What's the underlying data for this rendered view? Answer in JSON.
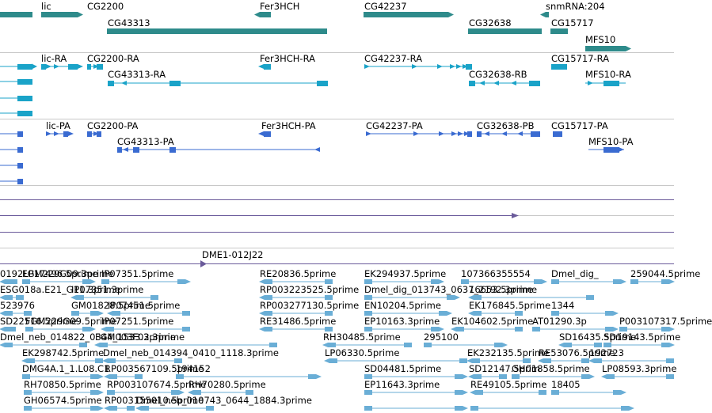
{
  "colors": {
    "gene": "#2e8b8b",
    "transcript": "#1aa3c8",
    "protein": "#3a6bd1",
    "clone": "#7b64b0",
    "est": "#6aaed6",
    "divider": "#c8c8c8",
    "track_line": "#6a5a9a"
  },
  "genes": [
    {
      "label": "lic"
    },
    {
      "label": "CG2200"
    },
    {
      "label": "CG43313"
    },
    {
      "label": "Fer3HCH"
    },
    {
      "label": "CG42237"
    },
    {
      "label": "CG32638"
    },
    {
      "label": "snmRNA:204"
    },
    {
      "label": "CG15717"
    },
    {
      "label": "MFS10"
    }
  ],
  "transcripts": [
    {
      "label": "lic-RA"
    },
    {
      "label": "CG2200-RA"
    },
    {
      "label": "CG43313-RA"
    },
    {
      "label": "Fer3HCH-RA"
    },
    {
      "label": "CG42237-RA"
    },
    {
      "label": "CG32638-RB"
    },
    {
      "label": "CG15717-RA"
    },
    {
      "label": "MFS10-RA"
    }
  ],
  "proteins": [
    {
      "label": "lic-PA"
    },
    {
      "label": "CG2200-PA"
    },
    {
      "label": "CG43313-PA"
    },
    {
      "label": "Fer3HCH-PA"
    },
    {
      "label": "CG42237-PA"
    },
    {
      "label": "CG32638-PB"
    },
    {
      "label": "CG15717-PA"
    },
    {
      "label": "MFS10-PA"
    }
  ],
  "clone": {
    "label": "DME1-012J22"
  },
  "ests": [
    {
      "label": "0192LP17496.5prime"
    },
    {
      "label": "FGM229G09.3prime"
    },
    {
      "label": "IP07351.5prime"
    },
    {
      "label": "RE20836.5prime"
    },
    {
      "label": "EK294937.5prime"
    },
    {
      "label": "107366355554"
    },
    {
      "label": "Dmel_dig_"
    },
    {
      "label": "259044.5prime"
    },
    {
      "label": "ESG018a.E21_G11.3prime"
    },
    {
      "label": "IP07351.3prime"
    },
    {
      "label": "RP003223525.5prime"
    },
    {
      "label": "Dmel_dig_013743_0637_2192.3prime"
    },
    {
      "label": "16653.5prime"
    },
    {
      "label": "523976"
    },
    {
      "label": "GM01828.5prime"
    },
    {
      "label": "IP07451.5prime"
    },
    {
      "label": "RP003277130.5prime"
    },
    {
      "label": "EN10204.5prime"
    },
    {
      "label": "EK176845.5prime"
    },
    {
      "label": "1344"
    },
    {
      "label": "SD22516.5prime"
    },
    {
      "label": "FGM229G09.5prime"
    },
    {
      "label": "IP07251.5prime"
    },
    {
      "label": "RE31486.5prime"
    },
    {
      "label": "EP10163.3prime"
    },
    {
      "label": "EK104602.5prime"
    },
    {
      "label": "AT01290.3p"
    },
    {
      "label": "P003107317.5prime"
    },
    {
      "label": "Dmel_neb_014822_0344_1533.3prime"
    },
    {
      "label": "FGM003F02.3prime"
    },
    {
      "label": "RH30485.5prime"
    },
    {
      "label": "295100"
    },
    {
      "label": "SD16435.5prime"
    },
    {
      "label": "SD19143.5prime"
    },
    {
      "label": "EK298742.5prime"
    },
    {
      "label": "Dmel_neb_014394_0410_1118.3prime"
    },
    {
      "label": "LP06330.5prime"
    },
    {
      "label": "EK232135.5prime"
    },
    {
      "label": "RE53076.5prime"
    },
    {
      "label": "192723"
    },
    {
      "label": "DMG4A.1_1.L08.C1"
    },
    {
      "label": "RP003567109.5prime"
    },
    {
      "label": "194152"
    },
    {
      "label": "SD04481.5prime"
    },
    {
      "label": "SD12147.5prim"
    },
    {
      "label": "GH01858.5prime"
    },
    {
      "label": "LP08593.3prime"
    },
    {
      "label": "RH70850.5prime"
    },
    {
      "label": "RP003107674.5prime"
    },
    {
      "label": "RH70280.5prime"
    },
    {
      "label": "EP11643.3prime"
    },
    {
      "label": "RE49105.5prime"
    },
    {
      "label": "18405"
    },
    {
      "label": "GH06574.5prime"
    },
    {
      "label": "RP003155010.5prime"
    },
    {
      "label": "Dmel_neb_010743_0644_1884.3prime"
    }
  ]
}
